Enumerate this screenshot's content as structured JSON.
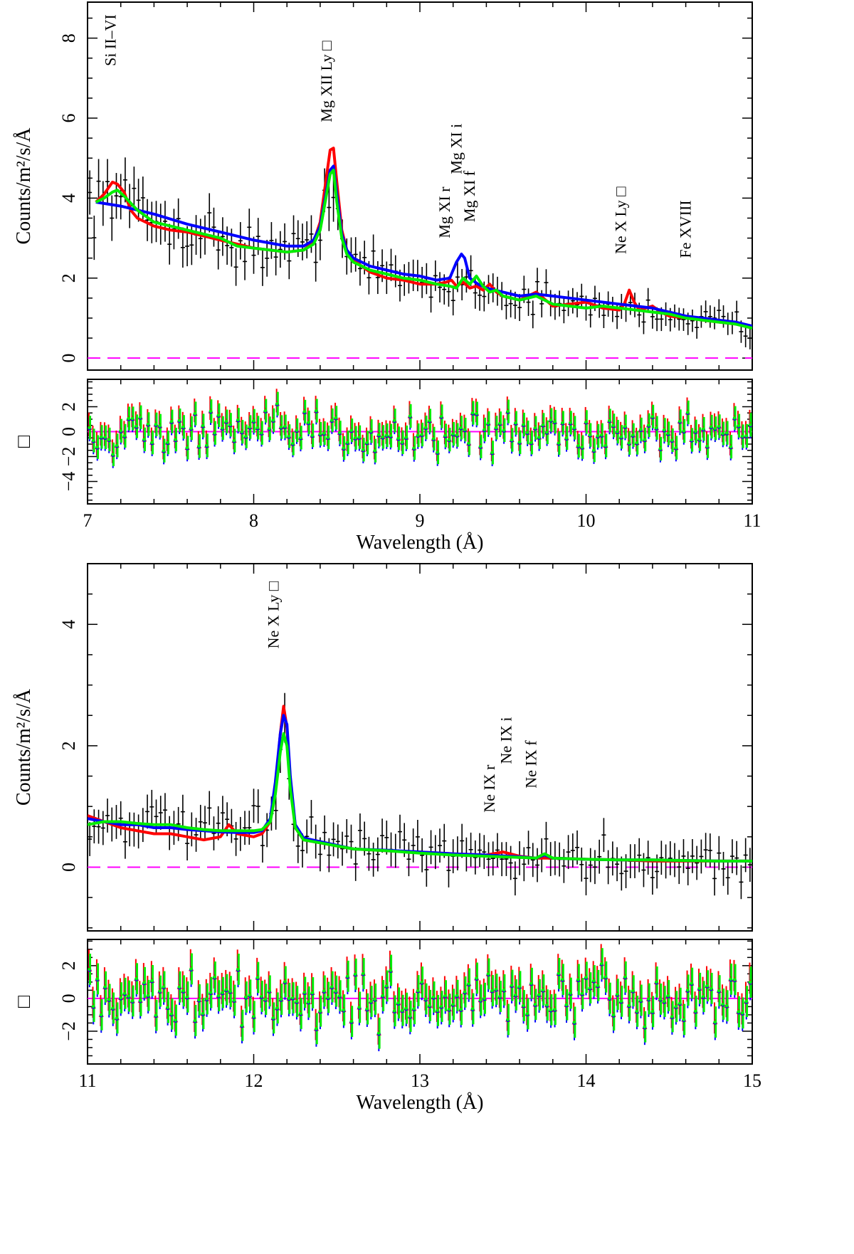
{
  "chart_data": [
    {
      "type": "line",
      "panel": "upper-spectrum",
      "xlim": [
        7,
        11
      ],
      "ylim": [
        -0.3,
        8.9
      ],
      "xlabel": "",
      "ylabel": "Counts/m²/s/Å",
      "xticks": [
        "7",
        "8",
        "9",
        "10",
        "11"
      ],
      "yticks": [
        "0",
        "2",
        "4",
        "6",
        "8"
      ],
      "ytick_values": [
        0,
        2,
        4,
        6,
        8
      ],
      "zero_line_color": "#ff00ff",
      "annotations": [
        {
          "text": "Si II–VI",
          "x": 7.17,
          "y": 7.3
        },
        {
          "text": "Mg XII Ly □",
          "x": 8.47,
          "y": 5.9
        },
        {
          "text": "Mg XI r",
          "x": 9.18,
          "y": 3.0
        },
        {
          "text": "Mg XI i",
          "x": 9.25,
          "y": 4.6
        },
        {
          "text": "Mg XI f",
          "x": 9.33,
          "y": 3.4
        },
        {
          "text": "Ne X Ly □",
          "x": 10.24,
          "y": 2.6
        },
        {
          "text": "Fe XVIII",
          "x": 10.63,
          "y": 2.5
        }
      ],
      "series": [
        {
          "name": "model-red",
          "color": "#ff0000",
          "x": [
            7.05,
            7.1,
            7.15,
            7.18,
            7.22,
            7.26,
            7.3,
            7.4,
            7.5,
            7.6,
            7.7,
            7.8,
            7.9,
            8.0,
            8.1,
            8.2,
            8.3,
            8.36,
            8.4,
            8.43,
            8.46,
            8.48,
            8.5,
            8.53,
            8.56,
            8.6,
            8.65,
            8.7,
            8.8,
            8.9,
            9.0,
            9.1,
            9.16,
            9.19,
            9.22,
            9.26,
            9.3,
            9.34,
            9.38,
            9.42,
            9.46,
            9.5,
            9.6,
            9.7,
            9.8,
            9.9,
            10.0,
            10.1,
            10.2,
            10.23,
            10.26,
            10.29,
            10.32,
            10.4,
            10.45,
            10.5,
            10.6,
            10.7,
            10.8,
            10.9,
            11.0
          ],
          "y": [
            3.9,
            4.1,
            4.4,
            4.35,
            4.15,
            3.7,
            3.5,
            3.3,
            3.2,
            3.15,
            3.05,
            2.95,
            2.85,
            2.75,
            2.7,
            2.65,
            2.7,
            2.9,
            3.4,
            4.3,
            5.2,
            5.25,
            4.4,
            3.2,
            2.7,
            2.45,
            2.3,
            2.15,
            2.0,
            1.95,
            1.85,
            1.85,
            1.9,
            1.95,
            1.8,
            1.9,
            1.75,
            1.8,
            1.7,
            1.85,
            1.65,
            1.55,
            1.45,
            1.65,
            1.3,
            1.35,
            1.4,
            1.25,
            1.2,
            1.35,
            1.7,
            1.4,
            1.2,
            1.3,
            1.15,
            1.05,
            1.0,
            0.95,
            0.9,
            0.85,
            0.8
          ]
        },
        {
          "name": "model-blue",
          "color": "#0000ff",
          "x": [
            7.05,
            7.2,
            7.4,
            7.6,
            7.8,
            8.0,
            8.2,
            8.3,
            8.36,
            8.4,
            8.43,
            8.46,
            8.48,
            8.5,
            8.53,
            8.56,
            8.6,
            8.7,
            8.8,
            8.9,
            9.0,
            9.1,
            9.18,
            9.22,
            9.25,
            9.27,
            9.3,
            9.35,
            9.4,
            9.5,
            9.6,
            9.7,
            9.8,
            9.9,
            10.0,
            10.1,
            10.2,
            10.3,
            10.4,
            10.5,
            10.6,
            10.7,
            10.8,
            10.9,
            11.0
          ],
          "y": [
            3.9,
            3.8,
            3.6,
            3.35,
            3.15,
            2.95,
            2.8,
            2.8,
            2.95,
            3.3,
            4.0,
            4.7,
            4.8,
            4.1,
            3.1,
            2.7,
            2.5,
            2.3,
            2.2,
            2.1,
            2.05,
            1.95,
            2.0,
            2.4,
            2.6,
            2.5,
            2.0,
            1.85,
            1.75,
            1.65,
            1.55,
            1.6,
            1.55,
            1.5,
            1.45,
            1.4,
            1.35,
            1.3,
            1.25,
            1.15,
            1.05,
            1.0,
            0.95,
            0.9,
            0.8
          ]
        },
        {
          "name": "model-green",
          "color": "#00ee00",
          "x": [
            7.05,
            7.1,
            7.15,
            7.18,
            7.22,
            7.3,
            7.4,
            7.5,
            7.6,
            7.7,
            7.8,
            7.9,
            8.0,
            8.1,
            8.2,
            8.3,
            8.36,
            8.4,
            8.43,
            8.46,
            8.48,
            8.5,
            8.53,
            8.56,
            8.6,
            8.7,
            8.8,
            8.9,
            9.0,
            9.1,
            9.18,
            9.22,
            9.26,
            9.3,
            9.34,
            9.38,
            9.42,
            9.46,
            9.5,
            9.6,
            9.7,
            9.8,
            9.9,
            10.0,
            10.1,
            10.2,
            10.3,
            10.4,
            10.5,
            10.6,
            10.7,
            10.8,
            10.9,
            11.0
          ],
          "y": [
            3.9,
            4.0,
            4.15,
            4.2,
            4.05,
            3.7,
            3.4,
            3.3,
            3.2,
            3.1,
            3.0,
            2.8,
            2.75,
            2.7,
            2.65,
            2.7,
            2.85,
            3.2,
            3.9,
            4.6,
            4.7,
            3.9,
            3.0,
            2.6,
            2.4,
            2.2,
            2.1,
            2.0,
            1.95,
            1.85,
            1.8,
            1.75,
            2.0,
            1.85,
            2.05,
            1.8,
            1.65,
            1.7,
            1.55,
            1.45,
            1.55,
            1.35,
            1.3,
            1.25,
            1.3,
            1.25,
            1.2,
            1.15,
            1.1,
            1.0,
            0.95,
            0.9,
            0.85,
            0.75
          ]
        }
      ]
    },
    {
      "type": "scatter",
      "panel": "upper-residuals",
      "xlim": [
        7,
        11
      ],
      "ylim": [
        -5.8,
        4.2
      ],
      "xlabel": "Wavelength (Å)",
      "ylabel": "□",
      "xticks": [
        "7",
        "8",
        "9",
        "10",
        "11"
      ],
      "yticks": [
        "−4",
        "−2",
        "0",
        "2"
      ],
      "ytick_values": [
        -4,
        -2,
        0,
        2
      ],
      "zero_line_color": "#ff00ff",
      "residual_range": [
        -5.5,
        3.5
      ]
    },
    {
      "type": "line",
      "panel": "lower-spectrum",
      "xlim": [
        11,
        15
      ],
      "ylim": [
        -1.05,
        5.0
      ],
      "xlabel": "",
      "ylabel": "Counts/m²/s/Å",
      "xticks": [
        "11",
        "12",
        "13",
        "14",
        "15"
      ],
      "yticks": [
        "0",
        "2",
        "4"
      ],
      "ytick_values": [
        0,
        2,
        4
      ],
      "zero_line_color": "#ff00ff",
      "annotations": [
        {
          "text": "Ne X Ly □",
          "x": 12.15,
          "y": 3.6
        },
        {
          "text": "Ne IX r",
          "x": 13.45,
          "y": 0.9
        },
        {
          "text": "Ne IX i",
          "x": 13.55,
          "y": 1.7
        },
        {
          "text": "Ne IX f",
          "x": 13.7,
          "y": 1.3
        }
      ],
      "series": [
        {
          "name": "model-red",
          "color": "#ff0000",
          "x": [
            11.0,
            11.1,
            11.2,
            11.3,
            11.4,
            11.5,
            11.6,
            11.7,
            11.8,
            11.85,
            11.9,
            12.0,
            12.05,
            12.1,
            12.13,
            12.16,
            12.18,
            12.2,
            12.22,
            12.25,
            12.3,
            12.4,
            12.5,
            12.6,
            12.8,
            13.0,
            13.2,
            13.4,
            13.5,
            13.6,
            13.7,
            13.8,
            14.0,
            14.2,
            14.4,
            14.6,
            14.8,
            15.0
          ],
          "y": [
            0.85,
            0.75,
            0.65,
            0.6,
            0.55,
            0.55,
            0.5,
            0.45,
            0.5,
            0.7,
            0.55,
            0.5,
            0.55,
            0.75,
            1.3,
            2.2,
            2.65,
            2.3,
            1.4,
            0.65,
            0.45,
            0.4,
            0.35,
            0.3,
            0.27,
            0.25,
            0.22,
            0.2,
            0.25,
            0.18,
            0.15,
            0.15,
            0.13,
            0.12,
            0.1,
            0.1,
            0.1,
            0.1
          ]
        },
        {
          "name": "model-blue",
          "color": "#0000ff",
          "x": [
            11.0,
            11.1,
            11.2,
            11.3,
            11.4,
            11.5,
            11.6,
            11.7,
            11.8,
            11.9,
            12.0,
            12.05,
            12.1,
            12.13,
            12.16,
            12.18,
            12.2,
            12.22,
            12.25,
            12.3,
            12.4,
            12.5,
            12.6,
            12.8,
            13.0,
            13.2,
            13.4,
            13.6,
            13.7,
            13.75,
            13.8,
            14.0,
            14.2,
            14.4,
            14.6,
            14.8,
            15.0
          ],
          "y": [
            0.8,
            0.75,
            0.7,
            0.7,
            0.65,
            0.65,
            0.62,
            0.6,
            0.58,
            0.57,
            0.57,
            0.6,
            0.8,
            1.4,
            2.2,
            2.5,
            2.35,
            1.5,
            0.7,
            0.48,
            0.42,
            0.36,
            0.3,
            0.28,
            0.25,
            0.22,
            0.2,
            0.17,
            0.15,
            0.2,
            0.15,
            0.13,
            0.12,
            0.12,
            0.11,
            0.1,
            0.1
          ]
        },
        {
          "name": "model-green",
          "color": "#00ee00",
          "x": [
            11.0,
            11.1,
            11.2,
            11.3,
            11.4,
            11.5,
            11.6,
            11.7,
            11.8,
            11.9,
            12.0,
            12.05,
            12.1,
            12.13,
            12.16,
            12.18,
            12.2,
            12.22,
            12.25,
            12.3,
            12.4,
            12.5,
            12.6,
            12.8,
            13.0,
            13.2,
            13.4,
            13.6,
            13.7,
            13.75,
            13.8,
            14.0,
            14.2,
            14.4,
            14.6,
            14.8,
            15.0
          ],
          "y": [
            0.7,
            0.75,
            0.75,
            0.72,
            0.7,
            0.7,
            0.65,
            0.62,
            0.6,
            0.6,
            0.6,
            0.62,
            0.75,
            1.2,
            1.9,
            2.2,
            2.0,
            1.3,
            0.65,
            0.45,
            0.4,
            0.35,
            0.3,
            0.27,
            0.23,
            0.2,
            0.18,
            0.16,
            0.15,
            0.22,
            0.15,
            0.13,
            0.12,
            0.12,
            0.11,
            0.1,
            0.1
          ]
        }
      ]
    },
    {
      "type": "scatter",
      "panel": "lower-residuals",
      "xlim": [
        11,
        15
      ],
      "ylim": [
        -4.0,
        3.6
      ],
      "xlabel": "Wavelength (Å)",
      "ylabel": "□",
      "xticks": [
        "11",
        "12",
        "13",
        "14",
        "15"
      ],
      "yticks": [
        "−2",
        "0",
        "2"
      ],
      "ytick_values": [
        -2,
        0,
        2
      ],
      "zero_line_color": "#ff00ff",
      "residual_range": [
        -3.8,
        3.2
      ]
    }
  ]
}
